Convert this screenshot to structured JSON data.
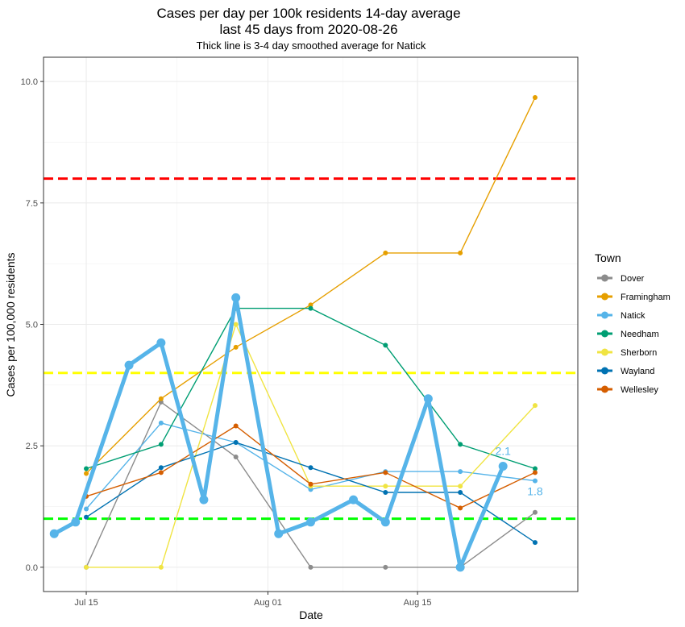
{
  "chart_data": {
    "type": "line",
    "title": "Cases per day per 100k residents 14-day average",
    "title_line2": "last 45 days from 2020-08-26",
    "subtitle": "Thick line is 3-4 day smoothed average for Natick",
    "xlabel": "Date",
    "ylabel": "Cases per 100,000 residents",
    "x_range": [
      "2020-07-11",
      "2020-08-30"
    ],
    "ylim": [
      -0.5,
      10.5
    ],
    "x_ticks": [
      {
        "date": "2020-07-15",
        "label": "Jul 15"
      },
      {
        "date": "2020-08-01",
        "label": "Aug 01"
      },
      {
        "date": "2020-08-15",
        "label": "Aug 15"
      }
    ],
    "y_ticks": [
      {
        "value": 0,
        "label": "0.0"
      },
      {
        "value": 2.5,
        "label": "2.5"
      },
      {
        "value": 5,
        "label": "5.0"
      },
      {
        "value": 7.5,
        "label": "7.5"
      },
      {
        "value": 10,
        "label": "10.0"
      }
    ],
    "grid": true,
    "legend": {
      "title": "Town",
      "position": "right"
    },
    "reference_lines": [
      {
        "y": 8,
        "color": "#ff0000"
      },
      {
        "y": 4,
        "color": "#ffff00"
      },
      {
        "y": 1,
        "color": "#00ff00"
      }
    ],
    "series": [
      {
        "name": "Dover",
        "color": "#8c8c8c",
        "x": [
          "2020-07-15",
          "2020-07-22",
          "2020-07-29",
          "2020-08-05",
          "2020-08-12",
          "2020-08-19",
          "2020-08-26"
        ],
        "values": [
          0,
          3.4,
          2.27,
          0,
          0,
          0,
          1.13
        ]
      },
      {
        "name": "Framingham",
        "color": "#e69f00",
        "x": [
          "2020-07-15",
          "2020-07-22",
          "2020-07-29",
          "2020-08-05",
          "2020-08-12",
          "2020-08-19",
          "2020-08-26"
        ],
        "values": [
          1.93,
          3.47,
          4.53,
          5.4,
          6.47,
          6.47,
          9.67
        ]
      },
      {
        "name": "Natick",
        "color": "#56b4e9",
        "x": [
          "2020-07-15",
          "2020-07-22",
          "2020-07-29",
          "2020-08-05",
          "2020-08-12",
          "2020-08-19",
          "2020-08-26"
        ],
        "values": [
          1.2,
          2.97,
          2.57,
          1.6,
          1.97,
          1.97,
          1.78
        ]
      },
      {
        "name": "Needham",
        "color": "#009e73",
        "x": [
          "2020-07-15",
          "2020-07-22",
          "2020-07-29",
          "2020-08-05",
          "2020-08-12",
          "2020-08-19",
          "2020-08-26"
        ],
        "values": [
          2.03,
          2.53,
          5.33,
          5.33,
          4.57,
          2.53,
          2.03
        ]
      },
      {
        "name": "Sherborn",
        "color": "#f0e442",
        "x": [
          "2020-07-15",
          "2020-07-22",
          "2020-07-29",
          "2020-08-05",
          "2020-08-12",
          "2020-08-19",
          "2020-08-26"
        ],
        "values": [
          0,
          0,
          5,
          1.67,
          1.67,
          1.67,
          3.33
        ]
      },
      {
        "name": "Wayland",
        "color": "#0072b2",
        "x": [
          "2020-07-15",
          "2020-07-22",
          "2020-07-29",
          "2020-08-05",
          "2020-08-12",
          "2020-08-19",
          "2020-08-26"
        ],
        "values": [
          1.03,
          2.05,
          2.57,
          2.05,
          1.54,
          1.54,
          0.51
        ]
      },
      {
        "name": "Wellesley",
        "color": "#d55e00",
        "x": [
          "2020-07-15",
          "2020-07-22",
          "2020-07-29",
          "2020-08-05",
          "2020-08-12",
          "2020-08-19",
          "2020-08-26"
        ],
        "values": [
          1.46,
          1.95,
          2.91,
          1.71,
          1.95,
          1.22,
          1.95
        ]
      }
    ],
    "smoothed": {
      "name": "Natick",
      "color": "#56b4e9",
      "x": [
        "2020-07-12",
        "2020-07-14",
        "2020-07-19",
        "2020-07-22",
        "2020-07-26",
        "2020-07-29",
        "2020-08-02",
        "2020-08-05",
        "2020-08-09",
        "2020-08-12",
        "2020-08-16",
        "2020-08-19",
        "2020-08-23"
      ],
      "values": [
        0.69,
        0.93,
        4.16,
        4.62,
        1.39,
        5.55,
        0.69,
        0.93,
        1.39,
        0.93,
        3.47,
        0,
        2.08
      ]
    },
    "end_labels": [
      {
        "text": "2.1",
        "x": "2020-08-23",
        "y": 2.08
      },
      {
        "text": "1.8",
        "x": "2020-08-26",
        "y": 1.78
      }
    ]
  }
}
